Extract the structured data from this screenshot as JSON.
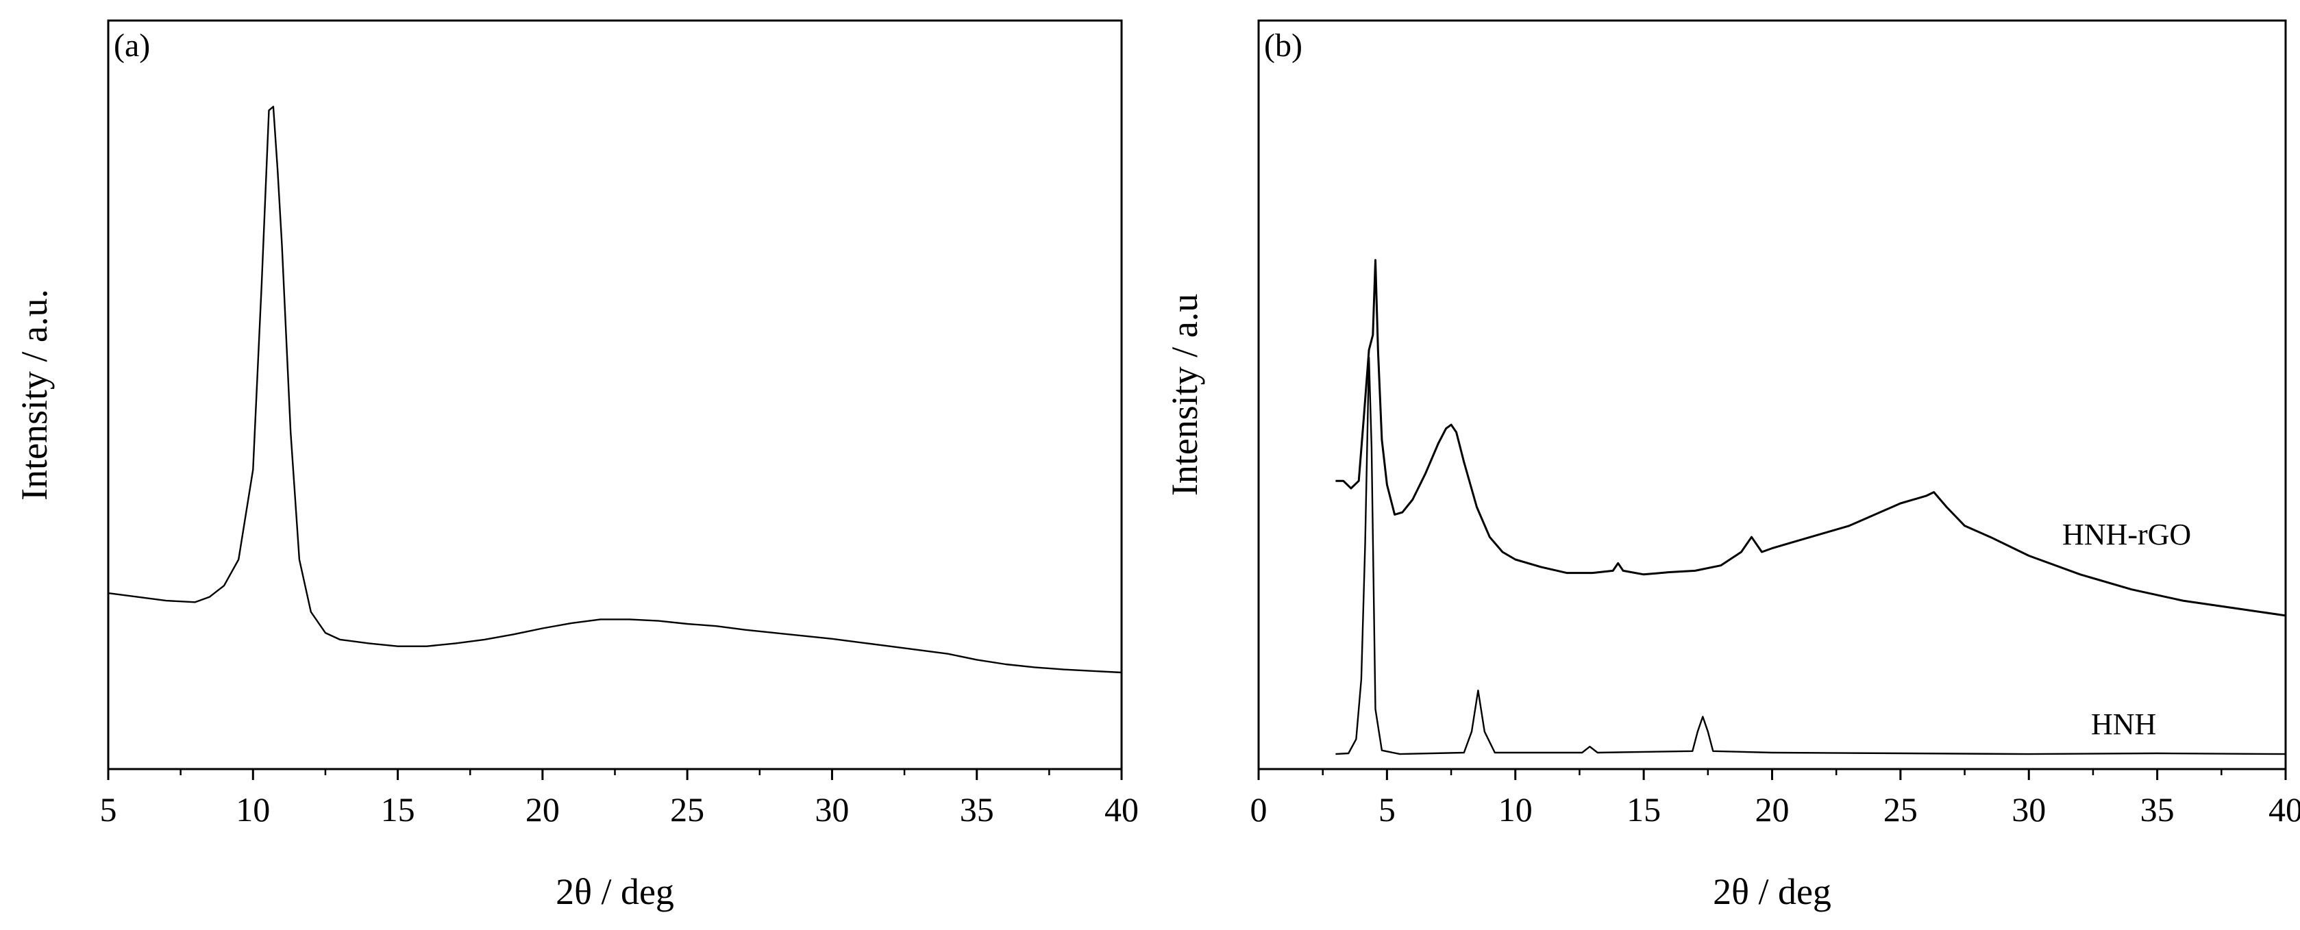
{
  "chart_data": [
    {
      "type": "line",
      "panel_label": "(a)",
      "xlabel": "2θ / deg",
      "ylabel": "Intensity / a.u.",
      "xlim": [
        5,
        40
      ],
      "ylim": [
        0,
        100
      ],
      "xticks": [
        5,
        10,
        15,
        20,
        25,
        30,
        35,
        40
      ],
      "grid": false,
      "series": [
        {
          "points": [
            [
              5,
              23.5
            ],
            [
              6,
              23.0
            ],
            [
              7,
              22.5
            ],
            [
              8,
              22.3
            ],
            [
              8.5,
              23.0
            ],
            [
              9,
              24.5
            ],
            [
              9.5,
              28.0
            ],
            [
              10,
              40.0
            ],
            [
              10.3,
              65.0
            ],
            [
              10.55,
              88.0
            ],
            [
              10.7,
              88.5
            ],
            [
              10.85,
              80.0
            ],
            [
              11.0,
              70.0
            ],
            [
              11.3,
              45.0
            ],
            [
              11.6,
              28.0
            ],
            [
              12,
              21.0
            ],
            [
              12.5,
              18.2
            ],
            [
              13,
              17.3
            ],
            [
              14,
              16.8
            ],
            [
              15,
              16.4
            ],
            [
              16,
              16.4
            ],
            [
              17,
              16.8
            ],
            [
              18,
              17.3
            ],
            [
              19,
              18.0
            ],
            [
              20,
              18.8
            ],
            [
              21,
              19.5
            ],
            [
              22,
              20.0
            ],
            [
              23,
              20.0
            ],
            [
              24,
              19.8
            ],
            [
              25,
              19.4
            ],
            [
              26,
              19.1
            ],
            [
              27,
              18.6
            ],
            [
              28,
              18.2
            ],
            [
              29,
              17.8
            ],
            [
              30,
              17.4
            ],
            [
              31,
              16.9
            ],
            [
              32,
              16.4
            ],
            [
              33,
              15.9
            ],
            [
              34,
              15.4
            ],
            [
              35,
              14.6
            ],
            [
              36,
              14.0
            ],
            [
              37,
              13.6
            ],
            [
              38,
              13.3
            ],
            [
              39,
              13.1
            ],
            [
              40,
              12.9
            ]
          ]
        }
      ]
    },
    {
      "type": "line",
      "panel_label": "(b)",
      "xlabel": "2θ / deg",
      "ylabel": "Intensity / a.u",
      "xlim": [
        0,
        40
      ],
      "ylim": [
        0,
        100
      ],
      "xticks": [
        0,
        5,
        10,
        15,
        20,
        25,
        30,
        35,
        40
      ],
      "grid": false,
      "series": [
        {
          "name": "HNH-rGO",
          "points": [
            [
              3.0,
              38.5
            ],
            [
              3.3,
              38.5
            ],
            [
              3.6,
              37.5
            ],
            [
              3.9,
              38.5
            ],
            [
              4.1,
              47.0
            ],
            [
              4.3,
              56.0
            ],
            [
              4.45,
              58.0
            ],
            [
              4.55,
              68.0
            ],
            [
              4.65,
              56.0
            ],
            [
              4.8,
              44.0
            ],
            [
              5.0,
              38.0
            ],
            [
              5.3,
              34.0
            ],
            [
              5.6,
              34.3
            ],
            [
              6.0,
              36.0
            ],
            [
              6.5,
              39.5
            ],
            [
              7.0,
              43.5
            ],
            [
              7.3,
              45.5
            ],
            [
              7.5,
              46.0
            ],
            [
              7.7,
              45.0
            ],
            [
              8.0,
              41.0
            ],
            [
              8.5,
              35.0
            ],
            [
              9.0,
              31.0
            ],
            [
              9.5,
              29.0
            ],
            [
              10,
              28.0
            ],
            [
              11,
              27.0
            ],
            [
              12,
              26.2
            ],
            [
              13,
              26.2
            ],
            [
              13.8,
              26.5
            ],
            [
              14,
              27.5
            ],
            [
              14.2,
              26.5
            ],
            [
              15,
              26.0
            ],
            [
              16,
              26.3
            ],
            [
              17,
              26.5
            ],
            [
              18,
              27.2
            ],
            [
              18.8,
              29.0
            ],
            [
              19.2,
              31.0
            ],
            [
              19.6,
              29.0
            ],
            [
              20,
              29.5
            ],
            [
              21,
              30.5
            ],
            [
              22,
              31.5
            ],
            [
              23,
              32.5
            ],
            [
              24,
              34.0
            ],
            [
              25,
              35.5
            ],
            [
              26,
              36.5
            ],
            [
              26.3,
              37.0
            ],
            [
              26.8,
              35.0
            ],
            [
              27.5,
              32.5
            ],
            [
              28.5,
              31.0
            ],
            [
              30,
              28.5
            ],
            [
              32,
              26.0
            ],
            [
              34,
              24.0
            ],
            [
              36,
              22.5
            ],
            [
              38,
              21.5
            ],
            [
              40,
              20.5
            ]
          ]
        },
        {
          "name": "HNH",
          "points": [
            [
              3.0,
              2.0
            ],
            [
              3.5,
              2.1
            ],
            [
              3.8,
              4.0
            ],
            [
              4.0,
              12.0
            ],
            [
              4.15,
              30.0
            ],
            [
              4.3,
              55.0
            ],
            [
              4.4,
              43.0
            ],
            [
              4.55,
              8.0
            ],
            [
              4.8,
              2.5
            ],
            [
              5.5,
              2.0
            ],
            [
              8.0,
              2.2
            ],
            [
              8.3,
              5.0
            ],
            [
              8.55,
              10.5
            ],
            [
              8.8,
              5.0
            ],
            [
              9.2,
              2.2
            ],
            [
              12.6,
              2.2
            ],
            [
              12.9,
              3.0
            ],
            [
              13.2,
              2.2
            ],
            [
              16.9,
              2.4
            ],
            [
              17.1,
              5.0
            ],
            [
              17.3,
              7.0
            ],
            [
              17.5,
              5.0
            ],
            [
              17.7,
              2.4
            ],
            [
              20,
              2.2
            ],
            [
              25,
              2.1
            ],
            [
              30,
              2.0
            ],
            [
              35,
              2.1
            ],
            [
              40,
              2.0
            ]
          ]
        }
      ]
    }
  ]
}
